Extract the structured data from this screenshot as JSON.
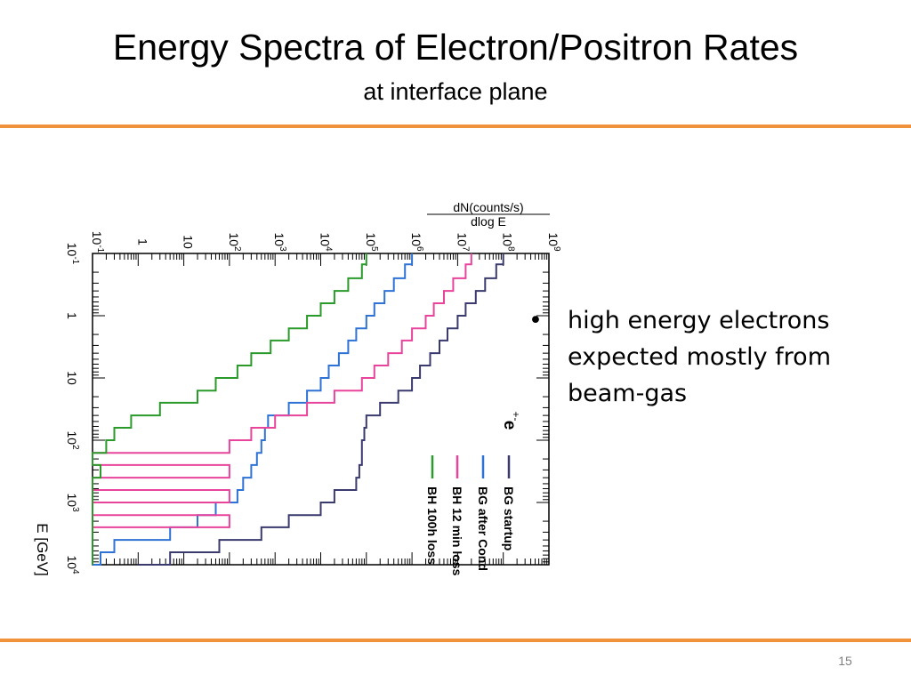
{
  "slide": {
    "title": "Energy Spectra of Electron/Positron Rates",
    "subtitle": "at interface plane",
    "bullet": "high energy electrons expected mostly from beam-gas",
    "bullet_marker": "•",
    "page_number": "15",
    "accent_color": "#f0913b"
  },
  "chart_data": {
    "type": "line",
    "orientation": "rotated 90 degrees clockwise",
    "title": "",
    "xlabel": "E [GeV]",
    "ylabel_numerator": "dN(counts/s)",
    "ylabel_denominator": "dlog E",
    "x_scale": "log",
    "y_scale": "log",
    "xlim": [
      0.1,
      10000
    ],
    "ylim": [
      0.1,
      1000000000
    ],
    "x_ticks": [
      {
        "value": 0.1,
        "base": "10",
        "exp": "-1"
      },
      {
        "value": 1,
        "base": "1",
        "exp": ""
      },
      {
        "value": 10,
        "base": "10",
        "exp": ""
      },
      {
        "value": 100,
        "base": "10",
        "exp": "2"
      },
      {
        "value": 1000,
        "base": "10",
        "exp": "3"
      },
      {
        "value": 10000,
        "base": "10",
        "exp": "4"
      }
    ],
    "y_ticks": [
      {
        "value": 0.1,
        "base": "10",
        "exp": "-1"
      },
      {
        "value": 1,
        "base": "1",
        "exp": ""
      },
      {
        "value": 10,
        "base": "10",
        "exp": ""
      },
      {
        "value": 100,
        "base": "10",
        "exp": "2"
      },
      {
        "value": 1000,
        "base": "10",
        "exp": "3"
      },
      {
        "value": 10000,
        "base": "10",
        "exp": "4"
      },
      {
        "value": 100000,
        "base": "10",
        "exp": "5"
      },
      {
        "value": 1000000,
        "base": "10",
        "exp": "6"
      },
      {
        "value": 10000000,
        "base": "10",
        "exp": "7"
      },
      {
        "value": 100000000,
        "base": "10",
        "exp": "8"
      },
      {
        "value": 1000000000,
        "base": "10",
        "exp": "9"
      }
    ],
    "particle_label": "e",
    "particle_sup": "+",
    "particle_sub": "-",
    "legend_position": "lower-right (rotated)",
    "series": [
      {
        "name": "BG startup",
        "color": "#3a3a6e",
        "x": [
          0.1,
          0.15,
          0.25,
          0.4,
          0.63,
          1.0,
          1.6,
          2.5,
          4.0,
          6.3,
          10,
          16,
          25,
          40,
          63,
          100,
          160,
          250,
          400,
          630,
          1000,
          1600,
          2500,
          4000,
          6300,
          10000
        ],
        "y": [
          100000000,
          70000000,
          40000000,
          25000000,
          15000000,
          10000000,
          6000000,
          4000000,
          2500000,
          1500000,
          1000000,
          500000,
          200000,
          100000,
          90000,
          80000,
          80000,
          70000,
          60000,
          20000,
          10000,
          2000,
          500,
          60,
          5,
          1
        ]
      },
      {
        "name": "BG after Cond",
        "color": "#2f72d6",
        "x": [
          0.1,
          0.15,
          0.25,
          0.4,
          0.63,
          1.0,
          1.6,
          2.5,
          4.0,
          6.3,
          10,
          16,
          25,
          40,
          63,
          100,
          160,
          250,
          400,
          630,
          1000,
          1600,
          2500,
          4000,
          6300,
          10000
        ],
        "y": [
          1000000,
          700000,
          400000,
          250000,
          150000,
          100000,
          60000,
          40000,
          25000,
          15000,
          10000,
          5000,
          2000,
          700,
          600,
          500,
          400,
          300,
          200,
          150,
          50,
          20,
          5,
          0.3,
          0.15,
          0.1
        ]
      },
      {
        "name": "BH 12 min loss",
        "color": "#e8449b",
        "x": [
          0.1,
          0.15,
          0.25,
          0.4,
          0.63,
          1.0,
          1.6,
          2.5,
          4.0,
          6.3,
          10,
          16,
          25,
          40,
          63,
          100,
          160,
          250,
          400,
          630,
          1000,
          1600,
          2500,
          4000,
          6300,
          10000
        ],
        "y": [
          20000000,
          15000000,
          8000000,
          5000000,
          3000000,
          2000000,
          1000000,
          600000,
          300000,
          150000,
          80000,
          20000,
          5000,
          1000,
          300,
          100,
          0.1,
          100,
          0.1,
          100,
          0.1,
          100,
          0.1,
          0.1,
          0.1,
          0.1
        ]
      },
      {
        "name": "BH 100h loss",
        "color": "#2a9a2a",
        "x": [
          0.1,
          0.15,
          0.25,
          0.4,
          0.63,
          1.0,
          1.6,
          2.5,
          4.0,
          6.3,
          10,
          16,
          25,
          40,
          63,
          100,
          160,
          250,
          400,
          630,
          1000,
          1600,
          2500,
          4000,
          6300,
          10000
        ],
        "y": [
          100000,
          80000,
          40000,
          20000,
          10000,
          5000,
          2000,
          800,
          300,
          150,
          50,
          20,
          3,
          0.7,
          0.3,
          0.2,
          0.1,
          0.15,
          0.1,
          0.1,
          0.1,
          0.1,
          0.1,
          0.1,
          0.1,
          0.1
        ]
      }
    ]
  }
}
